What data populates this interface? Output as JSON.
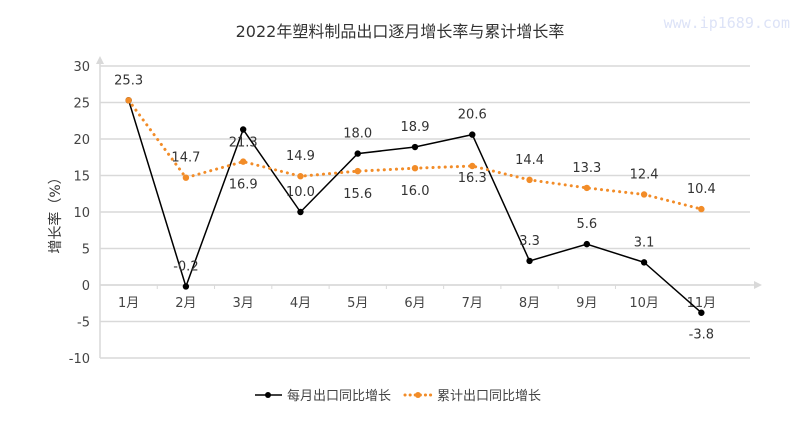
{
  "watermark": "www.ip1689.com",
  "chart_data": {
    "type": "line",
    "title": "2022年塑料制品出口逐月增长率与累计增长率",
    "ylabel": "增长率（%）",
    "xlabel": "",
    "ylim": [
      -10,
      30
    ],
    "yticks": [
      30,
      25,
      20,
      15,
      10,
      5,
      0,
      -5,
      -10
    ],
    "grid": true,
    "legend": "bottom",
    "categories": [
      "1月",
      "2月",
      "3月",
      "4月",
      "5月",
      "6月",
      "7月",
      "8月",
      "9月",
      "10月",
      "11月"
    ],
    "series": [
      {
        "name": "每月出口同比增长",
        "color": "#000000",
        "style": "solid",
        "values": [
          25.3,
          -0.2,
          21.3,
          10.0,
          18.0,
          18.9,
          20.6,
          3.3,
          5.6,
          3.1,
          -3.8
        ]
      },
      {
        "name": "累计出口同比增长",
        "color": "#f28c28",
        "style": "dotted",
        "values": [
          25.3,
          14.7,
          16.9,
          14.9,
          15.6,
          16.0,
          16.3,
          14.4,
          13.3,
          12.4,
          10.4
        ]
      }
    ]
  }
}
